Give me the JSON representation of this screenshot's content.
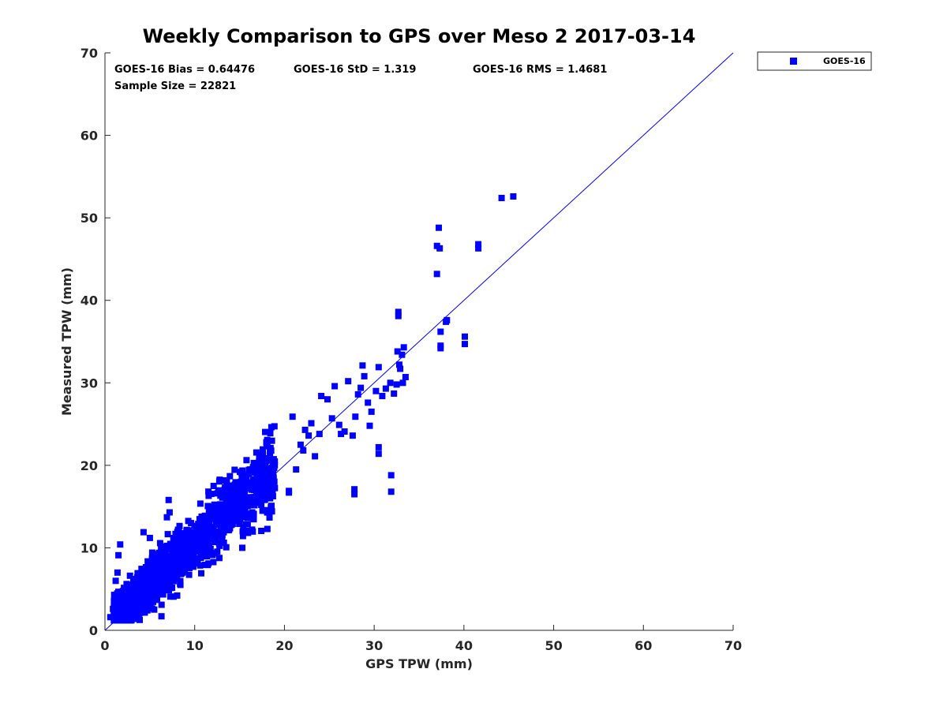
{
  "chart_data": {
    "type": "scatter",
    "title": "Weekly Comparison to GPS over Meso 2 2017-03-14",
    "xlabel": "GPS TPW (mm)",
    "ylabel": "Measured TPW (mm)",
    "xlim": [
      0,
      70
    ],
    "ylim": [
      0,
      70
    ],
    "xticks": [
      "0",
      "10",
      "20",
      "30",
      "40",
      "50",
      "60",
      "70"
    ],
    "yticks": [
      "0",
      "10",
      "20",
      "30",
      "40",
      "50",
      "60",
      "70"
    ],
    "grid": false,
    "legend": {
      "position": "outside-top-right",
      "entries": [
        "GOES-16"
      ]
    },
    "stats": {
      "bias": "GOES-16 Bias = 0.64476",
      "std": "GOES-16 StD = 1.319",
      "rms": "GOES-16 RMS = 1.4681",
      "sample_size": "Sample Size = 22821"
    },
    "reference_line": {
      "name": "1:1 line",
      "from": [
        0,
        0
      ],
      "to": [
        70,
        70
      ]
    },
    "series": [
      {
        "name": "GOES-16",
        "color": "#0000ff",
        "marker": "square",
        "cluster": {
          "x_range": [
            1,
            19
          ],
          "spread_y": 1.8,
          "offset_y": 0.6,
          "count": 1400
        },
        "points": [
          [
            1.7,
            10.4
          ],
          [
            1.5,
            9.1
          ],
          [
            1.4,
            7.0
          ],
          [
            1.2,
            6.0
          ],
          [
            0.6,
            1.6
          ],
          [
            0.9,
            2.6
          ],
          [
            6.3,
            1.7
          ],
          [
            7.1,
            15.8
          ],
          [
            7.2,
            14.3
          ],
          [
            6.9,
            13.7
          ],
          [
            4.3,
            11.9
          ],
          [
            5.0,
            11.2
          ],
          [
            15.3,
            10.0
          ],
          [
            16.4,
            12.2
          ],
          [
            17.8,
            17.3
          ],
          [
            18.7,
            18.4
          ],
          [
            20.5,
            16.7
          ],
          [
            20.5,
            16.9
          ],
          [
            21.3,
            19.5
          ],
          [
            21.8,
            22.5
          ],
          [
            22.1,
            21.8
          ],
          [
            20.9,
            25.9
          ],
          [
            22.3,
            24.3
          ],
          [
            23.0,
            25.1
          ],
          [
            23.4,
            21.1
          ],
          [
            23.9,
            23.8
          ],
          [
            24.1,
            28.4
          ],
          [
            24.8,
            28.0
          ],
          [
            25.6,
            29.6
          ],
          [
            26.1,
            24.9
          ],
          [
            26.7,
            24.1
          ],
          [
            27.1,
            30.2
          ],
          [
            27.6,
            23.6
          ],
          [
            27.9,
            25.9
          ],
          [
            28.2,
            28.6
          ],
          [
            28.5,
            29.4
          ],
          [
            28.9,
            30.8
          ],
          [
            28.7,
            32.1
          ],
          [
            29.3,
            27.6
          ],
          [
            29.7,
            26.5
          ],
          [
            30.2,
            29.0
          ],
          [
            30.5,
            31.9
          ],
          [
            30.9,
            28.4
          ],
          [
            31.3,
            29.3
          ],
          [
            31.8,
            30.0
          ],
          [
            32.2,
            28.7
          ],
          [
            32.5,
            29.8
          ],
          [
            32.6,
            33.8
          ],
          [
            32.8,
            32.2
          ],
          [
            33.1,
            33.4
          ],
          [
            33.3,
            34.3
          ],
          [
            33.5,
            30.7
          ],
          [
            33.2,
            30.0
          ],
          [
            32.9,
            31.7
          ],
          [
            32.7,
            38.1
          ],
          [
            32.7,
            38.6
          ],
          [
            27.8,
            17.1
          ],
          [
            27.8,
            16.5
          ],
          [
            30.5,
            22.2
          ],
          [
            30.5,
            21.4
          ],
          [
            31.9,
            18.8
          ],
          [
            31.9,
            16.8
          ],
          [
            26.3,
            23.8
          ],
          [
            29.5,
            24.8
          ],
          [
            25.3,
            25.7
          ],
          [
            22.7,
            23.6
          ],
          [
            37.0,
            46.6
          ],
          [
            37.3,
            46.3
          ],
          [
            37.2,
            48.8
          ],
          [
            37.0,
            43.2
          ],
          [
            37.4,
            36.2
          ],
          [
            37.4,
            34.2
          ],
          [
            37.4,
            34.5
          ],
          [
            38.1,
            37.6
          ],
          [
            38.0,
            37.4
          ],
          [
            40.1,
            35.6
          ],
          [
            40.1,
            34.7
          ],
          [
            41.6,
            46.8
          ],
          [
            41.6,
            46.3
          ],
          [
            44.2,
            52.4
          ],
          [
            45.5,
            52.6
          ]
        ]
      }
    ]
  }
}
